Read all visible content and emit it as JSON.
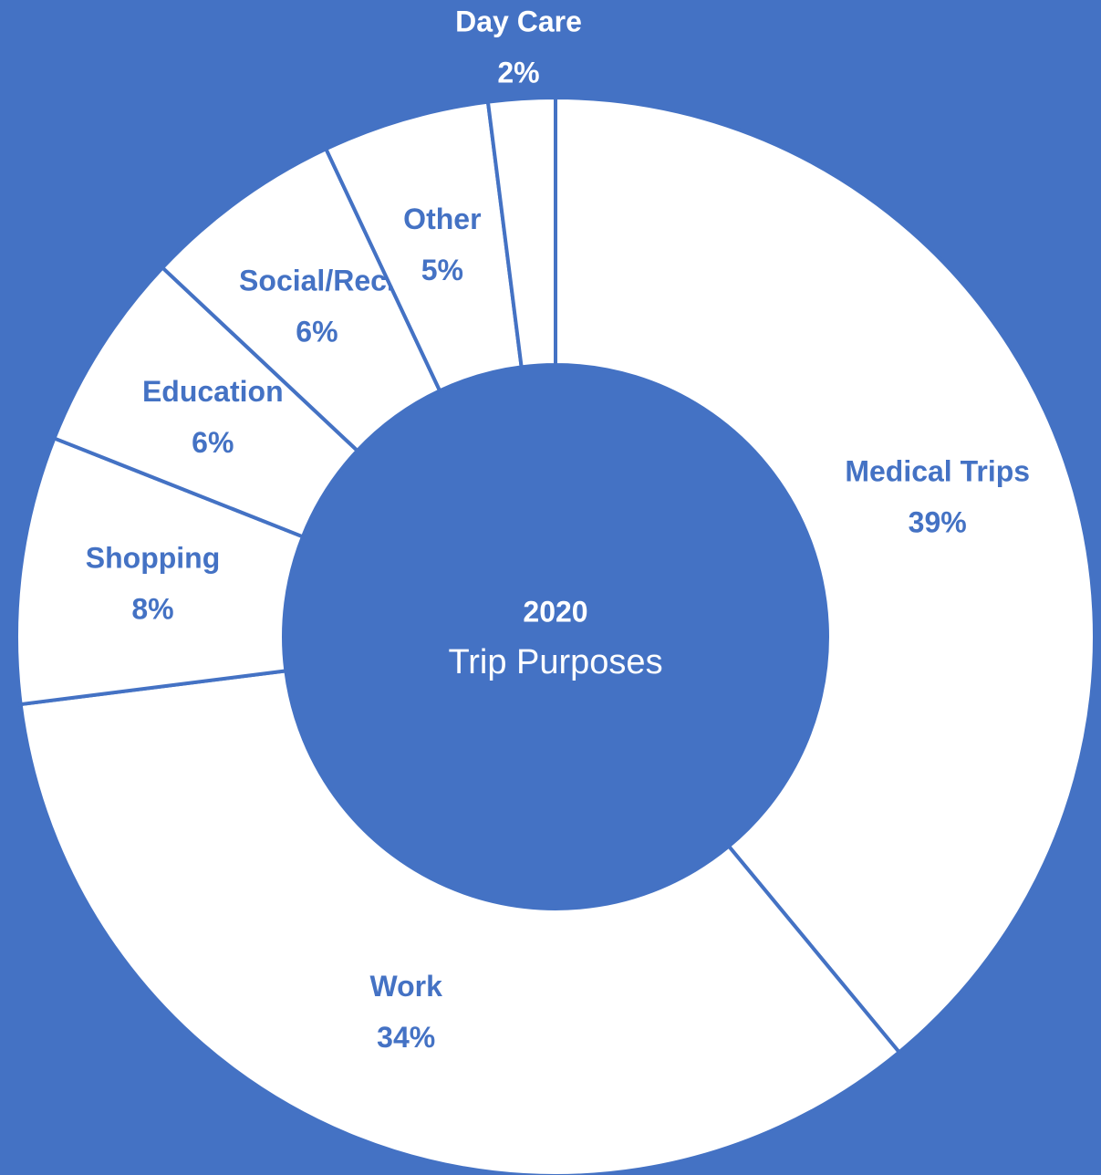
{
  "chart_data": {
    "type": "donut",
    "subtitle": "2020",
    "title": "Trip Purposes",
    "categories": [
      "Medical Trips",
      "Work",
      "Shopping",
      "Education",
      "Social/Rec.",
      "Other",
      "Day Care"
    ],
    "values": [
      39,
      34,
      8,
      6,
      6,
      5,
      2
    ],
    "value_labels": [
      "39%",
      "34%",
      "8%",
      "6%",
      "6%",
      "5%",
      "2%"
    ],
    "color": "#ffffff",
    "border_color": "#4472c4",
    "background": "#4472c4"
  }
}
